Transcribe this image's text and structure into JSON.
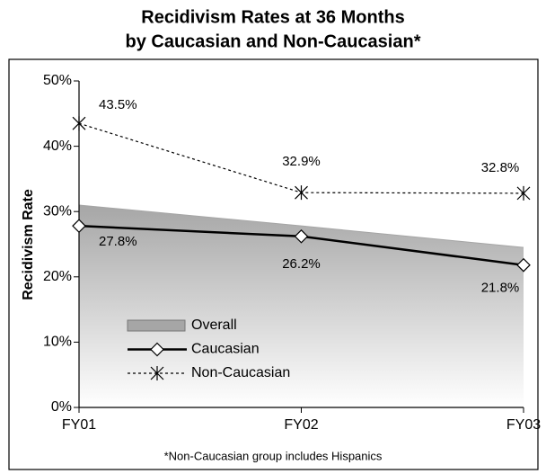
{
  "chart_data": {
    "type": "line",
    "title": "Recidivism Rates at 36 Months",
    "subtitle": "by Caucasian and Non-Caucasian*",
    "y_label": "Recidivism Rate",
    "footnote": "*Non-Caucasian group includes Hispanics",
    "categories": [
      "FY01",
      "FY02",
      "FY03"
    ],
    "ylim": [
      0,
      50
    ],
    "yticks": [
      {
        "value": 0,
        "label": "0%"
      },
      {
        "value": 10,
        "label": "10%"
      },
      {
        "value": 20,
        "label": "20%"
      },
      {
        "value": 30,
        "label": "30%"
      },
      {
        "value": 40,
        "label": "40%"
      },
      {
        "value": 50,
        "label": "50%"
      }
    ],
    "series": [
      {
        "name": "Overall",
        "type": "area",
        "color": "#a6a6a6",
        "values": [
          31.0,
          27.8,
          24.5
        ]
      },
      {
        "name": "Caucasian",
        "type": "line",
        "color": "#000000",
        "marker": "diamond",
        "dash": "solid",
        "values": [
          27.8,
          26.2,
          21.8
        ],
        "value_labels": [
          "27.8%",
          "26.2%",
          "21.8%"
        ]
      },
      {
        "name": "Non-Caucasian",
        "type": "line",
        "color": "#000000",
        "marker": "asterisk",
        "dash": "dashed",
        "values": [
          43.5,
          32.9,
          32.8
        ],
        "value_labels": [
          "43.5%",
          "32.9%",
          "32.8%"
        ]
      }
    ]
  }
}
